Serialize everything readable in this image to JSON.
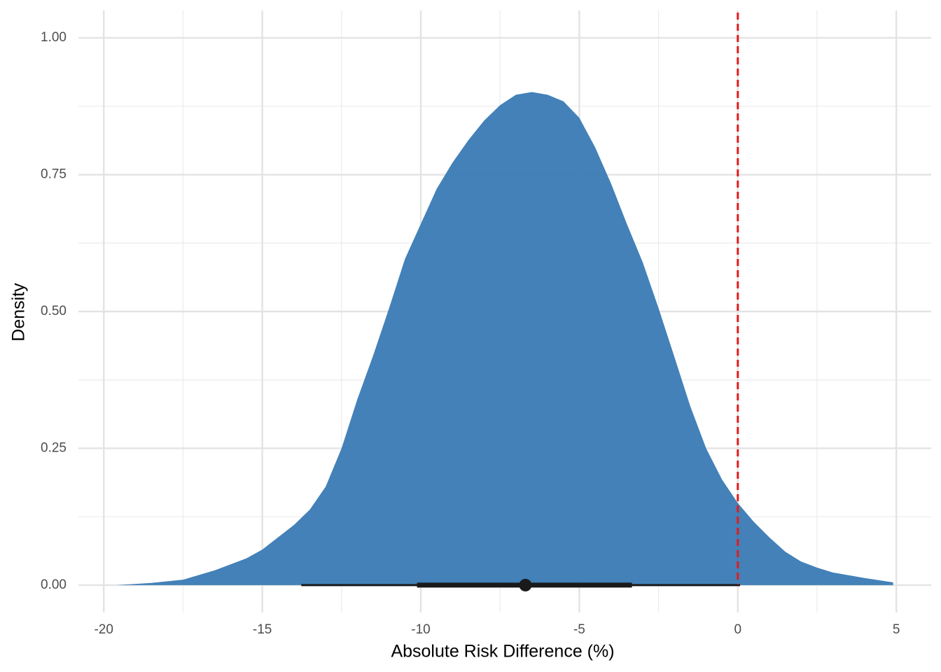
{
  "chart_data": {
    "type": "density",
    "x_label": "Absolute Risk Difference (%)",
    "y_label": "Density",
    "xlim": [
      -20.8,
      6.1
    ],
    "ylim": [
      -0.05,
      1.05
    ],
    "xticks": [
      -20,
      -15,
      -10,
      -5,
      0,
      5
    ],
    "xminor_ticks": [
      -17.5,
      -12.5,
      -7.5,
      -2.5,
      2.5
    ],
    "yticks": [
      {
        "value": 0,
        "label": "0.00"
      },
      {
        "value": 0.25,
        "label": "0.25"
      },
      {
        "value": 0.5,
        "label": "0.50"
      },
      {
        "value": 0.75,
        "label": "0.75"
      },
      {
        "value": 1,
        "label": "1.00"
      }
    ],
    "yminor_ticks": [
      0.125,
      0.375,
      0.625,
      0.875
    ],
    "grid": true,
    "density": {
      "color": "#3d7db6",
      "x": [
        -19.6,
        -18.5,
        -17.5,
        -16.5,
        -15.5,
        -15,
        -14,
        -13.5,
        -13,
        -12.5,
        -12,
        -11.5,
        -11,
        -10.5,
        -10,
        -9.5,
        -9,
        -8.5,
        -8,
        -7.5,
        -7,
        -6.5,
        -6,
        -5.5,
        -5,
        -4.5,
        -4,
        -3.5,
        -3,
        -2.5,
        -2,
        -1.5,
        -1,
        -0.5,
        0,
        0.5,
        1,
        1.5,
        2,
        2.5,
        3,
        4,
        4.9
      ],
      "y": [
        0.0,
        0.004,
        0.01,
        0.027,
        0.049,
        0.065,
        0.11,
        0.138,
        0.18,
        0.25,
        0.34,
        0.42,
        0.506,
        0.596,
        0.66,
        0.724,
        0.772,
        0.813,
        0.849,
        0.877,
        0.896,
        0.901,
        0.896,
        0.884,
        0.854,
        0.8,
        0.734,
        0.66,
        0.59,
        0.506,
        0.417,
        0.327,
        0.25,
        0.193,
        0.15,
        0.116,
        0.087,
        0.061,
        0.043,
        0.032,
        0.023,
        0.013,
        0.005
      ]
    },
    "interval": {
      "color": "#1a1a1a",
      "point": -6.7,
      "inner": [
        -10.12,
        -3.34
      ],
      "outer": [
        -13.77,
        0.07
      ]
    },
    "reference_line": {
      "x": 0,
      "color": "#e41a1c"
    }
  }
}
